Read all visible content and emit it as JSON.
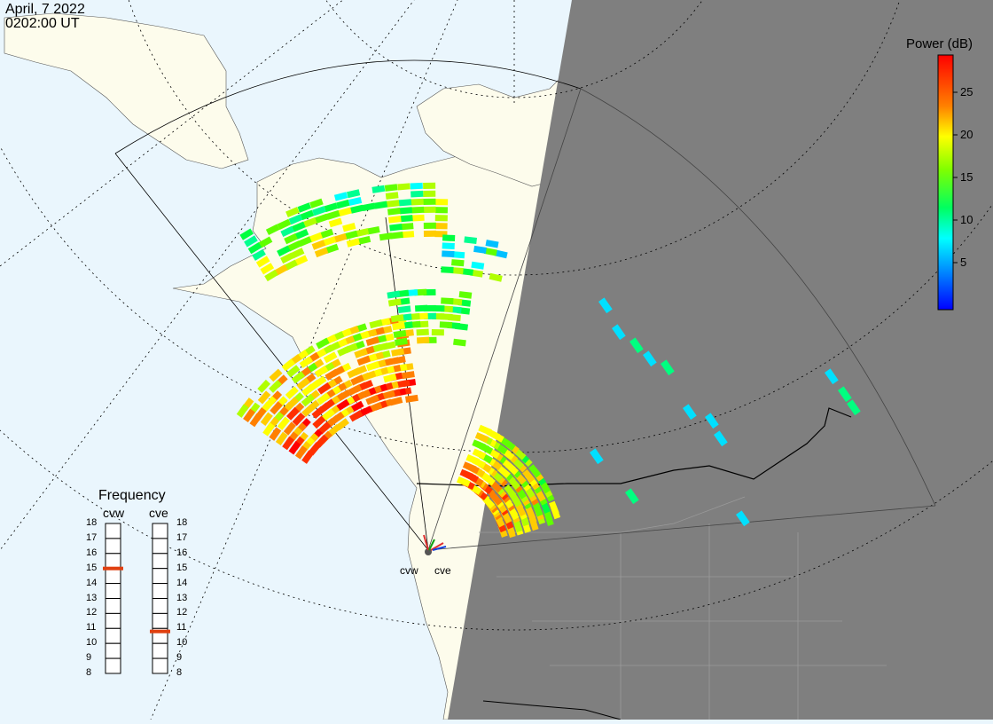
{
  "header": {
    "date": "April, 7 2022",
    "time": "0202:00 UT"
  },
  "colorbar": {
    "title": "Power (dB)",
    "ticks": [
      "25",
      "20",
      "15",
      "10",
      "5"
    ],
    "stops": [
      "#ff0000",
      "#ff8000",
      "#ffff00",
      "#80ff00",
      "#00ff60",
      "#00ffff",
      "#0080ff",
      "#0000ff"
    ]
  },
  "frequency": {
    "title": "Frequency",
    "radars": [
      {
        "name": "cvw",
        "selected": 15
      },
      {
        "name": "cve",
        "selected": 10.8
      }
    ],
    "labels": [
      "18",
      "17",
      "16",
      "15",
      "14",
      "13",
      "12",
      "11",
      "10",
      "9",
      "8"
    ]
  },
  "sites": [
    "cvw",
    "cve"
  ],
  "colors": {
    "ocean": "#eaf6fd",
    "land": "#fdfcec",
    "night": "#7f7f7f",
    "selected_freq": "#e04010"
  }
}
